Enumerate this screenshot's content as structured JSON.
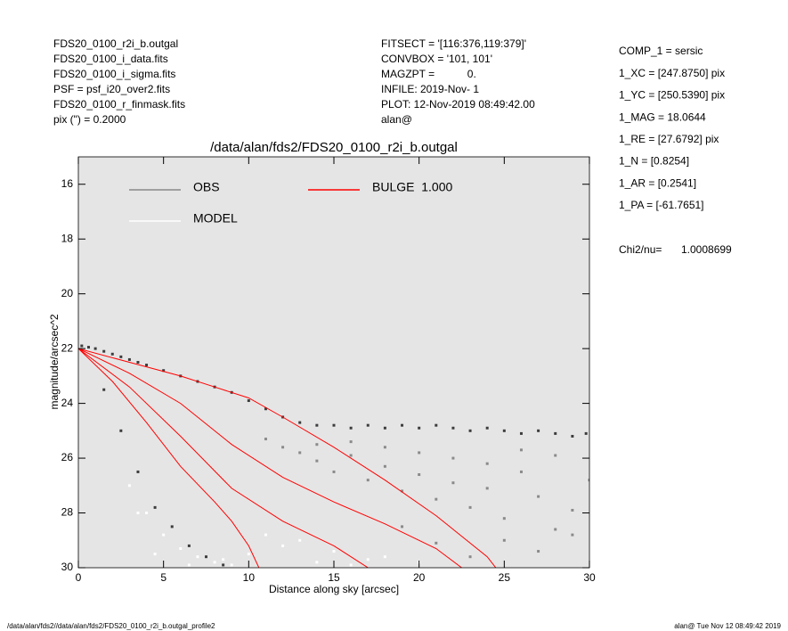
{
  "header": {
    "left": [
      "FDS20_0100_r2i_b.outgal",
      "FDS20_0100_i_data.fits",
      "FDS20_0100_i_sigma.fits",
      "PSF     = psf_i20_over2.fits",
      "FDS20_0100_r_finmask.fits",
      "pix (\") =  0.2000"
    ],
    "middle": [
      "FITSECT = '[116:376,119:379]'",
      "CONVBOX = '101, 101'",
      "MAGZPT =           0.",
      "INFILE: 2019-Nov- 1",
      "PLOT: 12-Nov-2019 08:49:42.00",
      "alan@"
    ],
    "right": [
      "COMP_1  = sersic",
      "1_XC    = [247.8750] pix",
      "1_YC    = [250.5390] pix",
      "1_MAG   = 18.0644",
      "1_RE    = [27.6792] pix",
      "1_N     = [0.8254]",
      "1_AR    = [0.2541]",
      "1_PA    = [-61.7651]"
    ],
    "chi2_label": "Chi2/nu=",
    "chi2_value": "1.0008699",
    "footer_left": "/data/alan/fds2//data/alan/fds2/FDS20_0100_r2i_b.outgal_profile2",
    "footer_right": "alan@  Tue Nov 12 08:49:42 2019"
  },
  "chart_data": {
    "type": "scatter",
    "title": "/data/alan/fds2/FDS20_0100_r2i_b.outgal",
    "x_label": "Distance along sky [arcsec]",
    "y_label": "magnitude/arcsec^2",
    "xlim": [
      0,
      30
    ],
    "ylim": [
      30,
      15
    ],
    "xticks": [
      0,
      5,
      10,
      15,
      20,
      25,
      30
    ],
    "yticks": [
      16,
      18,
      20,
      22,
      24,
      26,
      28,
      30
    ],
    "series": [
      {
        "name": "OBS",
        "color": "#8a8a8a",
        "mode": "markers",
        "x": [
          11,
          12,
          13,
          14,
          15,
          16,
          17,
          18,
          19,
          20,
          21,
          22,
          23,
          24,
          25,
          26,
          27,
          28,
          29,
          30,
          14,
          16,
          18,
          20,
          22,
          24,
          26,
          28,
          25,
          27,
          29,
          19,
          21,
          23
        ],
        "values": [
          25.3,
          25.6,
          25.8,
          26.1,
          26.5,
          25.9,
          26.8,
          26.3,
          27.2,
          26.6,
          27.5,
          26.9,
          27.8,
          27.1,
          28.2,
          26.5,
          27.4,
          28.6,
          27.9,
          26.8,
          25.5,
          25.4,
          25.6,
          25.8,
          26.0,
          26.2,
          25.7,
          25.9,
          29.0,
          29.4,
          28.8,
          28.5,
          29.1,
          29.6
        ]
      },
      {
        "name": "MODEL",
        "color": "#ffffff",
        "mode": "markers",
        "x": [
          3,
          4,
          5,
          6,
          7,
          8,
          9,
          3.5,
          4.5,
          6.5,
          8.5,
          10,
          12,
          14,
          16,
          18,
          20,
          11,
          13,
          15,
          17
        ],
        "values": [
          27,
          28,
          28.8,
          29.3,
          29.6,
          29.8,
          29.9,
          28,
          29.5,
          29.9,
          29.7,
          29.5,
          29.2,
          29.8,
          29.9,
          29.6,
          29.8,
          28.8,
          29.0,
          29.4,
          29.7
        ]
      },
      {
        "color": "#3c3c3c",
        "mode": "markers",
        "x": [
          0.2,
          0.6,
          1,
          1.5,
          2,
          2.5,
          3,
          3.5,
          4,
          5,
          6,
          7,
          8,
          9,
          10,
          11,
          12,
          13,
          14,
          15,
          16,
          17,
          18,
          19,
          20,
          21,
          22,
          23,
          24,
          25,
          26,
          27,
          28,
          29,
          29.8,
          1.5,
          2.5,
          3.5,
          4.5,
          5.5,
          6.5,
          7.5,
          8.5
        ],
        "values": [
          21.9,
          21.95,
          22.0,
          22.1,
          22.2,
          22.3,
          22.4,
          22.5,
          22.6,
          22.8,
          23.0,
          23.2,
          23.4,
          23.6,
          23.9,
          24.2,
          24.5,
          24.7,
          24.8,
          24.8,
          24.9,
          24.8,
          24.9,
          24.8,
          24.9,
          24.8,
          24.9,
          25.0,
          24.9,
          25.0,
          25.1,
          25.0,
          25.1,
          25.2,
          25.1,
          23.5,
          25,
          26.5,
          27.8,
          28.5,
          29.2,
          29.6,
          29.9
        ]
      },
      {
        "name": "BULGE  1.000",
        "color": "#ff0000",
        "mode": "lines",
        "x": [
          0,
          3,
          6,
          8,
          10,
          12,
          15,
          18,
          21,
          24,
          24.5,
          null,
          0,
          3,
          6,
          9,
          12,
          15,
          18,
          21,
          22.5,
          null,
          0,
          3,
          6,
          9,
          12,
          15,
          17,
          null,
          0,
          2,
          4,
          6,
          8,
          9,
          10,
          10.6
        ],
        "values": [
          22,
          22.5,
          23,
          23.4,
          23.8,
          24.5,
          25.6,
          26.8,
          28.1,
          29.6,
          30,
          null,
          22,
          22.9,
          24,
          25.5,
          26.7,
          27.6,
          28.4,
          29.3,
          30,
          null,
          22,
          23.4,
          25.2,
          27.1,
          28.3,
          29.2,
          30,
          null,
          22,
          23.2,
          24.7,
          26.3,
          27.6,
          28.3,
          29.2,
          30
        ]
      }
    ]
  }
}
